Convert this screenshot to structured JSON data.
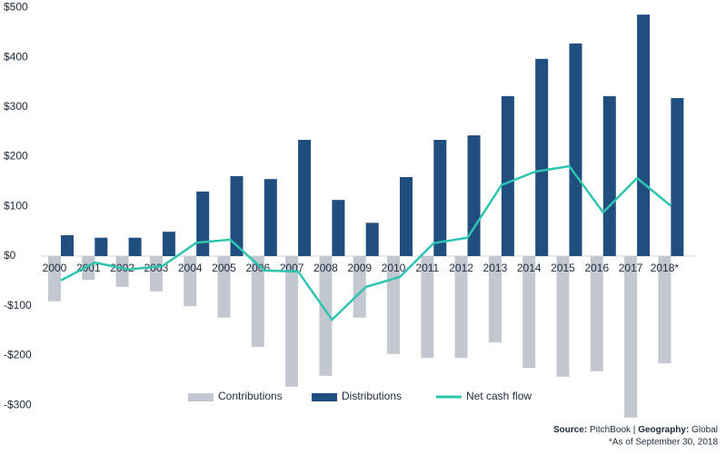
{
  "chart_data": {
    "type": "bar-line",
    "categories": [
      "2000",
      "2001",
      "2002",
      "2003",
      "2004",
      "2005",
      "2006",
      "2007",
      "2008",
      "2009",
      "2010",
      "2011",
      "2012",
      "2013",
      "2014",
      "2015",
      "2016",
      "2017",
      "2018*"
    ],
    "series": [
      {
        "name": "Contributions",
        "color": "#c3c8d0",
        "type": "bar",
        "values": [
          -91,
          -48,
          -62,
          -71,
          -101,
          -124,
          -183,
          -263,
          -241,
          -124,
          -197,
          -205,
          -205,
          -174,
          -225,
          -243,
          -232,
          -325,
          -216
        ]
      },
      {
        "name": "Distributions",
        "color": "#1f4e7f",
        "type": "bar",
        "values": [
          42,
          37,
          37,
          49,
          130,
          161,
          155,
          234,
          113,
          67,
          159,
          234,
          243,
          322,
          397,
          428,
          322,
          486,
          318
        ]
      },
      {
        "name": "Net cash flow",
        "color": "#2ec4b0",
        "type": "line",
        "values": [
          -49,
          -13,
          -27,
          -20,
          27,
          33,
          -29,
          -31,
          -128,
          -62,
          -42,
          26,
          37,
          143,
          170,
          181,
          88,
          157,
          101
        ]
      }
    ],
    "ylim": [
      -330,
      510
    ],
    "yticks": [
      {
        "value": -300,
        "label": "-$300"
      },
      {
        "value": -200,
        "label": "-$200"
      },
      {
        "value": -100,
        "label": "-$100"
      },
      {
        "value": 0,
        "label": "$0"
      },
      {
        "value": 100,
        "label": "$100"
      },
      {
        "value": 200,
        "label": "$200"
      },
      {
        "value": 300,
        "label": "$300"
      },
      {
        "value": 400,
        "label": "$400"
      },
      {
        "value": 500,
        "label": "$500"
      }
    ],
    "source": {
      "label": "Source:",
      "text": "PitchBook",
      "separator": "|",
      "geo_label": "Geography:",
      "geo_text": "Global"
    },
    "footnote": "*As of September 30, 2018"
  }
}
